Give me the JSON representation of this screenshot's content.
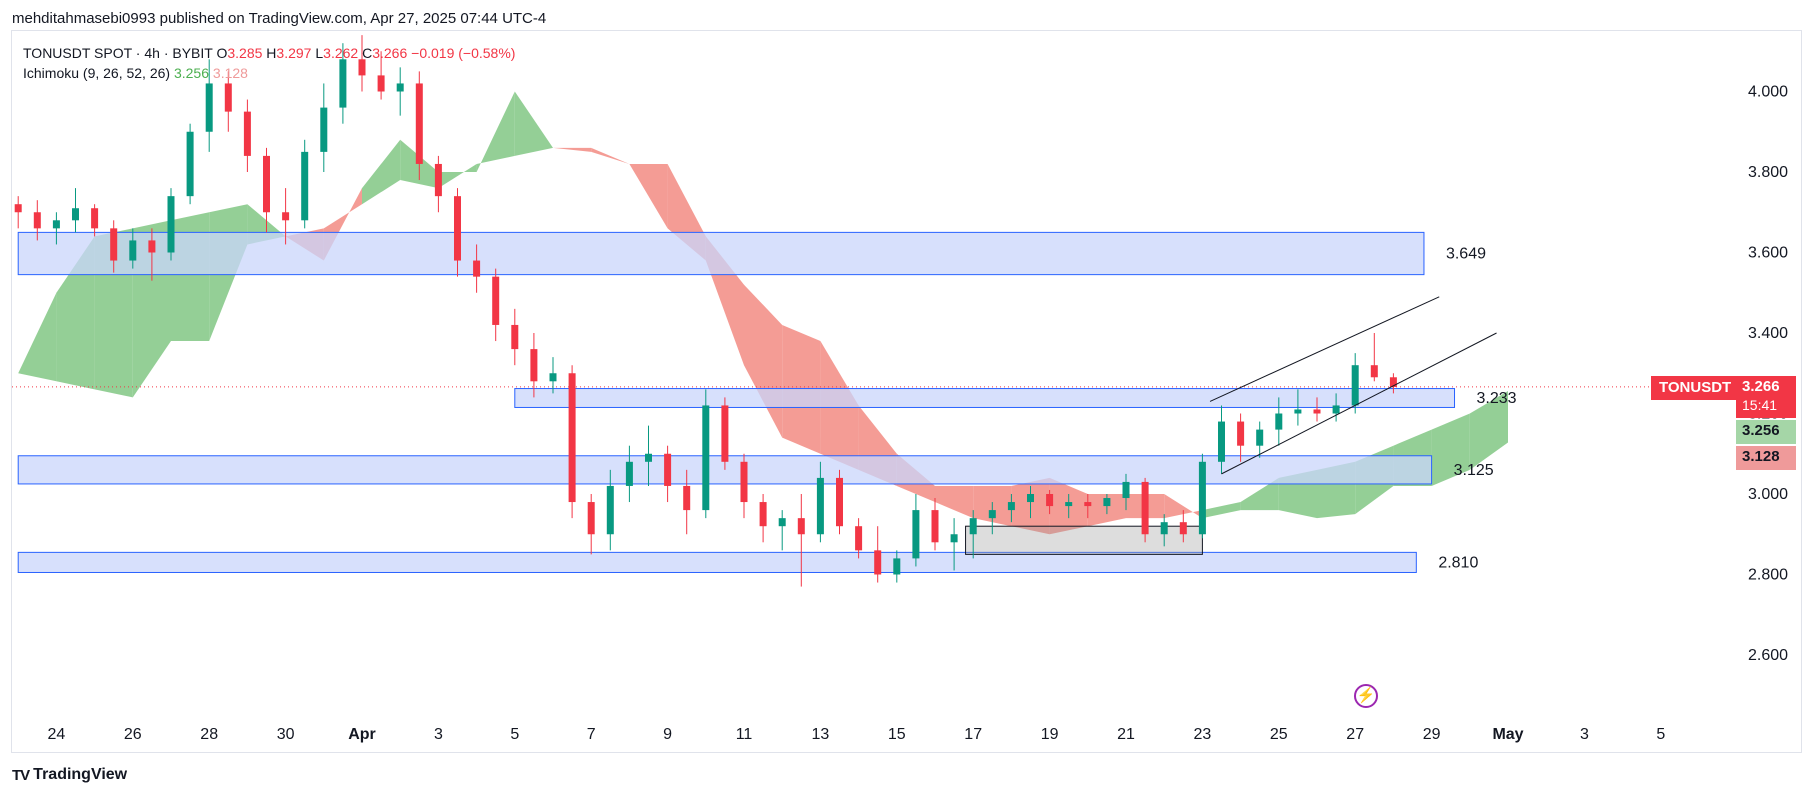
{
  "header": {
    "publisher_line": "mehditahmasebi0993 published on TradingView.com, Apr 27, 2025 07:44 UTC-4"
  },
  "legend": {
    "symbol_line": "TONUSDT SPOT · 4h · BYBIT",
    "o_label": "O",
    "o_value": "3.285",
    "h_label": "H",
    "h_value": "3.297",
    "l_label": "L",
    "l_value": "3.262",
    "c_label": "C",
    "c_value": "3.266",
    "change": "−0.019 (−0.58%)",
    "indicator": "Ichimoku (9, 26, 52, 26)",
    "indicator_value_1": "3.256",
    "indicator_value_2": "3.128"
  },
  "price_tags": {
    "symbol": "TONUSDT",
    "price": "3.266",
    "countdown": "15:41",
    "span_a": "3.256",
    "span_b": "3.128"
  },
  "footer": {
    "logo": "TV",
    "brand": "TradingView"
  },
  "icons": {
    "flash": "lightning-icon",
    "logo": "tradingview-logo-icon"
  },
  "colors": {
    "up": "#089981",
    "down": "#f23645",
    "cloud_bull": "#81c784",
    "cloud_bear": "#f28b82",
    "zone_fill": "#c9d6fb",
    "zone_stroke": "#2962ff"
  },
  "chart_data": {
    "type": "candlestick",
    "symbol": "TONUSDT",
    "interval": "4h",
    "exchange": "BYBIT",
    "y_ticks": [
      "4.000",
      "3.800",
      "3.600",
      "3.400",
      "3.200",
      "3.000",
      "2.800",
      "2.600"
    ],
    "y_tick_values": [
      4.0,
      3.8,
      3.6,
      3.4,
      3.2,
      3.0,
      2.8,
      2.6
    ],
    "ylim": [
      2.48,
      4.17
    ],
    "x_ticks": [
      "24",
      "26",
      "28",
      "30",
      "Apr",
      "3",
      "5",
      "7",
      "9",
      "11",
      "13",
      "15",
      "17",
      "19",
      "21",
      "23",
      "25",
      "27",
      "29",
      "May",
      "3",
      "5"
    ],
    "x_tick_days": [
      -8,
      -6,
      -4,
      -2,
      0,
      2,
      4,
      6,
      8,
      10,
      12,
      14,
      16,
      18,
      20,
      22,
      24,
      26,
      28,
      30,
      32,
      34
    ],
    "last_price": 3.266,
    "zones": [
      {
        "label": "3.649",
        "low": 3.545,
        "high": 3.65,
        "from_day": -9,
        "to_day": 27.8
      },
      {
        "label": "3.233",
        "low": 3.215,
        "high": 3.262,
        "from_day": 4,
        "to_day": 28.6
      },
      {
        "label": "3.125",
        "low": 3.025,
        "high": 3.095,
        "from_day": -9,
        "to_day": 28.0
      },
      {
        "label": "2.810",
        "low": 2.805,
        "high": 2.855,
        "from_day": -9,
        "to_day": 27.6
      }
    ],
    "consolidation_box": {
      "low": 2.85,
      "high": 2.92,
      "from_day": 15.8,
      "to_day": 22.0
    },
    "channel_lines": [
      {
        "from": [
          22.2,
          3.23
        ],
        "to": [
          28.2,
          3.49
        ]
      },
      {
        "from": [
          22.5,
          3.05
        ],
        "to": [
          29.7,
          3.4
        ]
      }
    ],
    "candles_daily_ohlc": [
      [
        -9.0,
        3.72,
        3.74,
        3.66,
        3.7
      ],
      [
        -8.5,
        3.7,
        3.73,
        3.63,
        3.66
      ],
      [
        -8.0,
        3.66,
        3.7,
        3.62,
        3.68
      ],
      [
        -7.5,
        3.68,
        3.76,
        3.65,
        3.71
      ],
      [
        -7.0,
        3.71,
        3.72,
        3.64,
        3.66
      ],
      [
        -6.5,
        3.66,
        3.68,
        3.55,
        3.58
      ],
      [
        -6.0,
        3.58,
        3.66,
        3.56,
        3.63
      ],
      [
        -5.5,
        3.63,
        3.66,
        3.53,
        3.6
      ],
      [
        -5.0,
        3.6,
        3.76,
        3.58,
        3.74
      ],
      [
        -4.5,
        3.74,
        3.92,
        3.72,
        3.9
      ],
      [
        -4.0,
        3.9,
        4.08,
        3.85,
        4.02
      ],
      [
        -3.5,
        4.02,
        4.05,
        3.9,
        3.95
      ],
      [
        -3.0,
        3.95,
        3.98,
        3.8,
        3.84
      ],
      [
        -2.5,
        3.84,
        3.86,
        3.65,
        3.7
      ],
      [
        -2.0,
        3.7,
        3.76,
        3.62,
        3.68
      ],
      [
        -1.5,
        3.68,
        3.88,
        3.66,
        3.85
      ],
      [
        -1.0,
        3.85,
        4.02,
        3.8,
        3.96
      ],
      [
        -0.5,
        3.96,
        4.12,
        3.92,
        4.08
      ],
      [
        0.0,
        4.08,
        4.14,
        4.0,
        4.04
      ],
      [
        0.5,
        4.04,
        4.1,
        3.98,
        4.0
      ],
      [
        1.0,
        4.0,
        4.06,
        3.94,
        4.02
      ],
      [
        1.5,
        4.02,
        4.05,
        3.78,
        3.82
      ],
      [
        2.0,
        3.82,
        3.84,
        3.7,
        3.74
      ],
      [
        2.5,
        3.74,
        3.76,
        3.54,
        3.58
      ],
      [
        3.0,
        3.58,
        3.62,
        3.5,
        3.54
      ],
      [
        3.5,
        3.54,
        3.56,
        3.38,
        3.42
      ],
      [
        4.0,
        3.42,
        3.46,
        3.32,
        3.36
      ],
      [
        4.5,
        3.36,
        3.4,
        3.24,
        3.28
      ],
      [
        5.0,
        3.28,
        3.34,
        3.25,
        3.3
      ],
      [
        5.5,
        3.3,
        3.32,
        2.94,
        2.98
      ],
      [
        6.0,
        2.98,
        3.0,
        2.85,
        2.9
      ],
      [
        6.5,
        2.9,
        3.06,
        2.86,
        3.02
      ],
      [
        7.0,
        3.02,
        3.12,
        2.98,
        3.08
      ],
      [
        7.5,
        3.08,
        3.17,
        3.02,
        3.1
      ],
      [
        8.0,
        3.1,
        3.12,
        2.98,
        3.02
      ],
      [
        8.5,
        3.02,
        3.06,
        2.9,
        2.96
      ],
      [
        9.0,
        2.96,
        3.26,
        2.94,
        3.22
      ],
      [
        9.5,
        3.22,
        3.24,
        3.06,
        3.08
      ],
      [
        10.0,
        3.08,
        3.1,
        2.94,
        2.98
      ],
      [
        10.5,
        2.98,
        3.0,
        2.88,
        2.92
      ],
      [
        11.0,
        2.92,
        2.96,
        2.86,
        2.94
      ],
      [
        11.5,
        2.94,
        3.0,
        2.77,
        2.9
      ],
      [
        12.0,
        2.9,
        3.08,
        2.88,
        3.04
      ],
      [
        12.5,
        3.04,
        3.06,
        2.9,
        2.92
      ],
      [
        13.0,
        2.92,
        2.94,
        2.84,
        2.86
      ],
      [
        13.5,
        2.86,
        2.92,
        2.78,
        2.8
      ],
      [
        14.0,
        2.8,
        2.86,
        2.78,
        2.84
      ],
      [
        14.5,
        2.84,
        3.0,
        2.82,
        2.96
      ],
      [
        15.0,
        2.96,
        2.99,
        2.86,
        2.88
      ],
      [
        15.5,
        2.88,
        2.94,
        2.81,
        2.9
      ],
      [
        16.0,
        2.9,
        2.96,
        2.84,
        2.94
      ],
      [
        16.5,
        2.94,
        2.98,
        2.9,
        2.96
      ],
      [
        17.0,
        2.96,
        3.0,
        2.93,
        2.98
      ],
      [
        17.5,
        2.98,
        3.02,
        2.94,
        3.0
      ],
      [
        18.0,
        3.0,
        3.01,
        2.95,
        2.97
      ],
      [
        18.5,
        2.97,
        3.0,
        2.94,
        2.98
      ],
      [
        19.0,
        2.98,
        3.0,
        2.94,
        2.97
      ],
      [
        19.5,
        2.97,
        3.0,
        2.95,
        2.99
      ],
      [
        20.0,
        2.99,
        3.05,
        2.96,
        3.03
      ],
      [
        20.5,
        3.03,
        3.04,
        2.88,
        2.9
      ],
      [
        21.0,
        2.9,
        2.95,
        2.87,
        2.93
      ],
      [
        21.5,
        2.93,
        2.96,
        2.88,
        2.9
      ],
      [
        22.0,
        2.9,
        3.1,
        2.89,
        3.08
      ],
      [
        22.5,
        3.08,
        3.22,
        3.05,
        3.18
      ],
      [
        23.0,
        3.18,
        3.2,
        3.08,
        3.12
      ],
      [
        23.5,
        3.12,
        3.18,
        3.09,
        3.16
      ],
      [
        24.0,
        3.16,
        3.24,
        3.12,
        3.2
      ],
      [
        24.5,
        3.2,
        3.26,
        3.17,
        3.21
      ],
      [
        25.0,
        3.21,
        3.24,
        3.18,
        3.2
      ],
      [
        25.5,
        3.2,
        3.25,
        3.18,
        3.22
      ],
      [
        26.0,
        3.22,
        3.35,
        3.2,
        3.32
      ],
      [
        26.5,
        3.32,
        3.4,
        3.28,
        3.29
      ],
      [
        27.0,
        3.29,
        3.3,
        3.25,
        3.266
      ]
    ],
    "ichimoku_cloud": [
      [
        -9.0,
        3.3,
        3.3
      ],
      [
        -8.0,
        3.5,
        3.28
      ],
      [
        -7.0,
        3.64,
        3.26
      ],
      [
        -6.0,
        3.66,
        3.24
      ],
      [
        -5.0,
        3.68,
        3.38
      ],
      [
        -4.0,
        3.7,
        3.38
      ],
      [
        -3.0,
        3.72,
        3.62
      ],
      [
        -2.0,
        3.64,
        3.64
      ],
      [
        -1.0,
        3.58,
        3.66
      ],
      [
        0.0,
        3.76,
        3.72
      ],
      [
        1.0,
        3.88,
        3.78
      ],
      [
        2.0,
        3.8,
        3.76
      ],
      [
        3.0,
        3.8,
        3.82
      ],
      [
        4.0,
        4.0,
        3.84
      ],
      [
        5.0,
        3.86,
        3.86
      ],
      [
        6.0,
        3.85,
        3.86
      ],
      [
        7.0,
        3.82,
        3.82
      ],
      [
        8.0,
        3.66,
        3.82
      ],
      [
        9.0,
        3.58,
        3.64
      ],
      [
        10.0,
        3.32,
        3.52
      ],
      [
        11.0,
        3.14,
        3.42
      ],
      [
        12.0,
        3.1,
        3.38
      ],
      [
        13.0,
        3.06,
        3.22
      ],
      [
        14.0,
        3.02,
        3.1
      ],
      [
        15.0,
        2.98,
        3.02
      ],
      [
        16.0,
        2.94,
        3.02
      ],
      [
        17.0,
        2.92,
        3.02
      ],
      [
        18.0,
        2.9,
        3.04
      ],
      [
        19.0,
        2.92,
        3.0
      ],
      [
        20.0,
        2.94,
        3.0
      ],
      [
        21.0,
        2.94,
        3.0
      ],
      [
        22.0,
        2.96,
        2.94
      ],
      [
        23.0,
        2.98,
        2.96
      ],
      [
        24.0,
        3.04,
        2.96
      ],
      [
        25.0,
        3.06,
        2.94
      ],
      [
        26.0,
        3.08,
        2.95
      ],
      [
        27.0,
        3.12,
        3.02
      ],
      [
        28.0,
        3.16,
        3.02
      ],
      [
        29.0,
        3.2,
        3.06
      ],
      [
        30.0,
        3.256,
        3.128
      ]
    ]
  }
}
